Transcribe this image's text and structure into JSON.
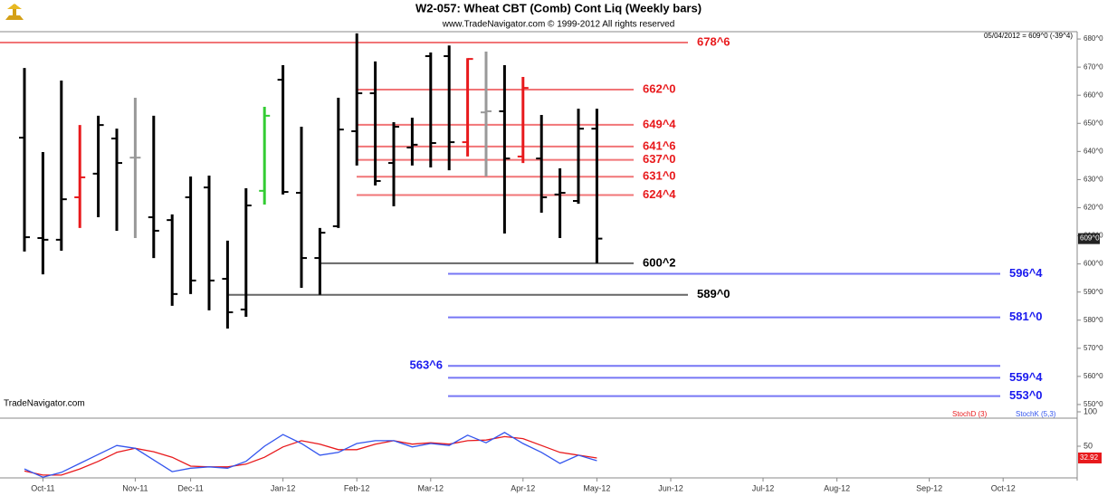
{
  "chart_data": [
    {
      "type": "ohlc",
      "title": "W2-057:  Wheat CBT (Comb) Cont Liq  (Weekly bars)",
      "subtitle": "www.TradeNavigator.com © 1999-2012 All rights reserved",
      "info": "05/04/2012 = 609^0 (-39^4)",
      "watermark": "TradeNavigator.com",
      "open": [
        644.9,
        609.2,
        608.6,
        623.7,
        632.1,
        644.6,
        637.8,
        616.6,
        615.6,
        623.7,
        627.2,
        594.7,
        583.8,
        626.0,
        665.5,
        625.3,
        602.1,
        613.4,
        647.2,
        660.7,
        635.9,
        641.4,
        673.9,
        673.9,
        643.3,
        653.9,
        654.3,
        638.2,
        637.5,
        624.7,
        622.4,
        648.1
      ],
      "high": [
        669.7,
        639.8,
        665.2,
        649.4,
        652.7,
        648.1,
        659.1,
        652.7,
        617.6,
        631.1,
        631.4,
        608.3,
        626.9,
        655.9,
        670.7,
        648.8,
        612.8,
        659.1,
        682.0,
        672.0,
        650.4,
        652.0,
        675.2,
        677.7,
        673.2,
        675.5,
        670.7,
        666.5,
        653.0,
        634.0,
        655.2,
        655.2
      ],
      "low": [
        604.4,
        596.3,
        604.7,
        612.8,
        616.6,
        611.8,
        609.2,
        602.1,
        585.1,
        589.3,
        583.5,
        577.0,
        581.2,
        621.1,
        624.7,
        591.5,
        589.0,
        612.8,
        635.0,
        627.9,
        620.5,
        635.0,
        634.3,
        633.3,
        638.2,
        631.1,
        610.8,
        635.9,
        618.2,
        609.2,
        621.4,
        600.25
      ],
      "close": [
        609.5,
        608.6,
        623.0,
        630.8,
        649.4,
        635.9,
        637.8,
        611.8,
        589.3,
        594.1,
        594.1,
        582.8,
        620.8,
        652.7,
        625.6,
        602.1,
        611.1,
        647.8,
        660.7,
        629.5,
        648.8,
        642.4,
        643.0,
        643.3,
        672.9,
        654.3,
        637.5,
        662.6,
        623.7,
        625.3,
        648.1,
        609
      ],
      "colors": [
        "#000000",
        "#000000",
        "#000000",
        "#e8191c",
        "#000000",
        "#000000",
        "#999999",
        "#000000",
        "#000000",
        "#000000",
        "#000000",
        "#000000",
        "#000000",
        "#33cc33",
        "#000000",
        "#000000",
        "#000000",
        "#000000",
        "#000000",
        "#000000",
        "#000000",
        "#000000",
        "#000000",
        "#000000",
        "#e8191c",
        "#999999",
        "#000000",
        "#e8191c",
        "#000000",
        "#000000",
        "#000000",
        "#000000"
      ],
      "ylim": [
        547.4,
        682.6
      ],
      "yticks": [
        {
          "value": 550,
          "label": "550^0"
        },
        {
          "value": 560,
          "label": "560^0"
        },
        {
          "value": 570,
          "label": "570^0"
        },
        {
          "value": 580,
          "label": "580^0"
        },
        {
          "value": 590,
          "label": "590^0"
        },
        {
          "value": 600,
          "label": "600^0"
        },
        {
          "value": 610,
          "label": "610^0"
        },
        {
          "value": 620,
          "label": "620^0"
        },
        {
          "value": 630,
          "label": "630^0"
        },
        {
          "value": 640,
          "label": "640^0"
        },
        {
          "value": 650,
          "label": "650^0"
        },
        {
          "value": 660,
          "label": "660^0"
        },
        {
          "value": 670,
          "label": "670^0"
        },
        {
          "value": 680,
          "label": "680^0"
        }
      ],
      "levels": [
        {
          "value": 678.75,
          "label": "678^6",
          "color": "#e8191c"
        },
        {
          "value": 662,
          "label": "662^0",
          "color": "#e8191c"
        },
        {
          "value": 649.5,
          "label": "649^4",
          "color": "#e8191c"
        },
        {
          "value": 641.75,
          "label": "641^6",
          "color": "#e8191c"
        },
        {
          "value": 637,
          "label": "637^0",
          "color": "#e8191c"
        },
        {
          "value": 631,
          "label": "631^0",
          "color": "#e8191c"
        },
        {
          "value": 624.5,
          "label": "624^4",
          "color": "#e8191c"
        },
        {
          "value": 600.25,
          "label": "600^2",
          "color": "#000000"
        },
        {
          "value": 589,
          "label": "589^0",
          "color": "#000000"
        },
        {
          "value": 596.5,
          "label": "596^4",
          "color": "#1a1aee"
        },
        {
          "value": 581,
          "label": "581^0",
          "color": "#1a1aee"
        },
        {
          "value": 563.75,
          "label": "563^6",
          "color": "#1a1aee"
        },
        {
          "value": 559.5,
          "label": "559^4",
          "color": "#1a1aee"
        },
        {
          "value": 553,
          "label": "553^0",
          "color": "#1a1aee"
        }
      ],
      "last_price": {
        "value": 609,
        "label": "609^0"
      }
    },
    {
      "type": "line",
      "categories": [
        null,
        "Oct-11",
        null,
        null,
        null,
        null,
        "Nov-11",
        null,
        null,
        "Dec-11",
        null,
        null,
        null,
        null,
        "Jan-12",
        null,
        null,
        null,
        "Feb-12",
        null,
        null,
        null,
        "Mar-12",
        null,
        null,
        null,
        null,
        "Apr-12",
        null,
        null,
        null,
        "May-12",
        null,
        null,
        null,
        "Jun-12",
        null,
        null,
        null,
        null,
        "Jul-12",
        null,
        null,
        null,
        "Aug-12",
        null,
        null,
        null,
        null,
        "Sep-12",
        null,
        null,
        null,
        "Oct-12",
        null,
        null,
        null
      ],
      "series": [
        {
          "name": "StochD (3)",
          "color": "#e8191c",
          "values": [
            14,
            8,
            8,
            17,
            28,
            41,
            47,
            42,
            34,
            21,
            20,
            20,
            24,
            34,
            49,
            58,
            53,
            45,
            45,
            53,
            58,
            53,
            55,
            53,
            58,
            59,
            64,
            61,
            51,
            41,
            37,
            32.92,
            null,
            null,
            null,
            null,
            null,
            null,
            null,
            null,
            null,
            null,
            null,
            null,
            null,
            null,
            null,
            null,
            null,
            null,
            null,
            null,
            null,
            null,
            null,
            null,
            null
          ]
        },
        {
          "name": "StochK (5,3)",
          "color": "#3355ee",
          "values": [
            17,
            5,
            12,
            25,
            38,
            51,
            47,
            30,
            13,
            18,
            20,
            18,
            28,
            50,
            67,
            54,
            37,
            41,
            54,
            58,
            58,
            49,
            54,
            51,
            66,
            55,
            70,
            54,
            41,
            25,
            37,
            29,
            null,
            null,
            null,
            null,
            null,
            null,
            null,
            null,
            null,
            null,
            null,
            null,
            null,
            null,
            null,
            null,
            null,
            null,
            null,
            null,
            null,
            null,
            null,
            null,
            null
          ]
        }
      ],
      "ylim": [
        0,
        100
      ],
      "yticks": [
        50,
        100
      ]
    }
  ]
}
